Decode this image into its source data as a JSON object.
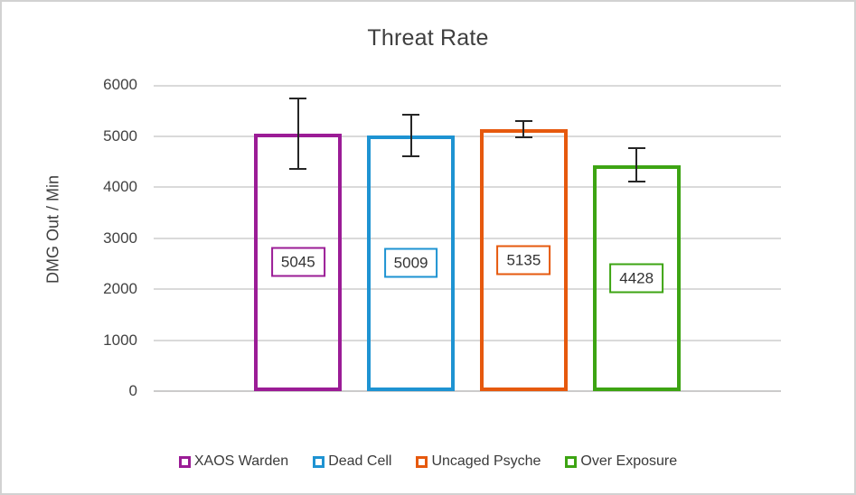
{
  "chart_data": {
    "type": "bar",
    "title": "Threat Rate",
    "xlabel": "",
    "ylabel": "DMG Out / Min",
    "ylim": [
      0,
      6000
    ],
    "yticks": [
      0,
      1000,
      2000,
      3000,
      4000,
      5000,
      6000
    ],
    "grid": true,
    "bar_fill": "hollow-outline",
    "legend_position": "bottom",
    "categories": [
      "XAOS Warden",
      "Dead Cell",
      "Uncaged Psyche",
      "Over Exposure"
    ],
    "series": [
      {
        "name": "XAOS Warden",
        "value": 5045,
        "data_label": "5045",
        "color": "#9b1c96",
        "error_bar": {
          "low": 4340,
          "high": 5750
        }
      },
      {
        "name": "Dead Cell",
        "value": 5009,
        "data_label": "5009",
        "color": "#1e93d2",
        "error_bar": {
          "low": 4590,
          "high": 5440
        }
      },
      {
        "name": "Uncaged Psyche",
        "value": 5135,
        "data_label": "5135",
        "color": "#e6590e",
        "error_bar": {
          "low": 4960,
          "high": 5310
        }
      },
      {
        "name": "Over Exposure",
        "value": 4428,
        "data_label": "4428",
        "color": "#3da413",
        "error_bar": {
          "low": 4090,
          "high": 4780
        }
      }
    ],
    "colors": {
      "gridline": "#dadada",
      "axis_line": "#cccbcb",
      "error_bar": "#262626",
      "title_text": "#3f3f3f",
      "tick_text": "#424242",
      "legend_text": "#3a3a3a",
      "frame_border": "#d2d2d2",
      "background": "#ffffff"
    }
  }
}
